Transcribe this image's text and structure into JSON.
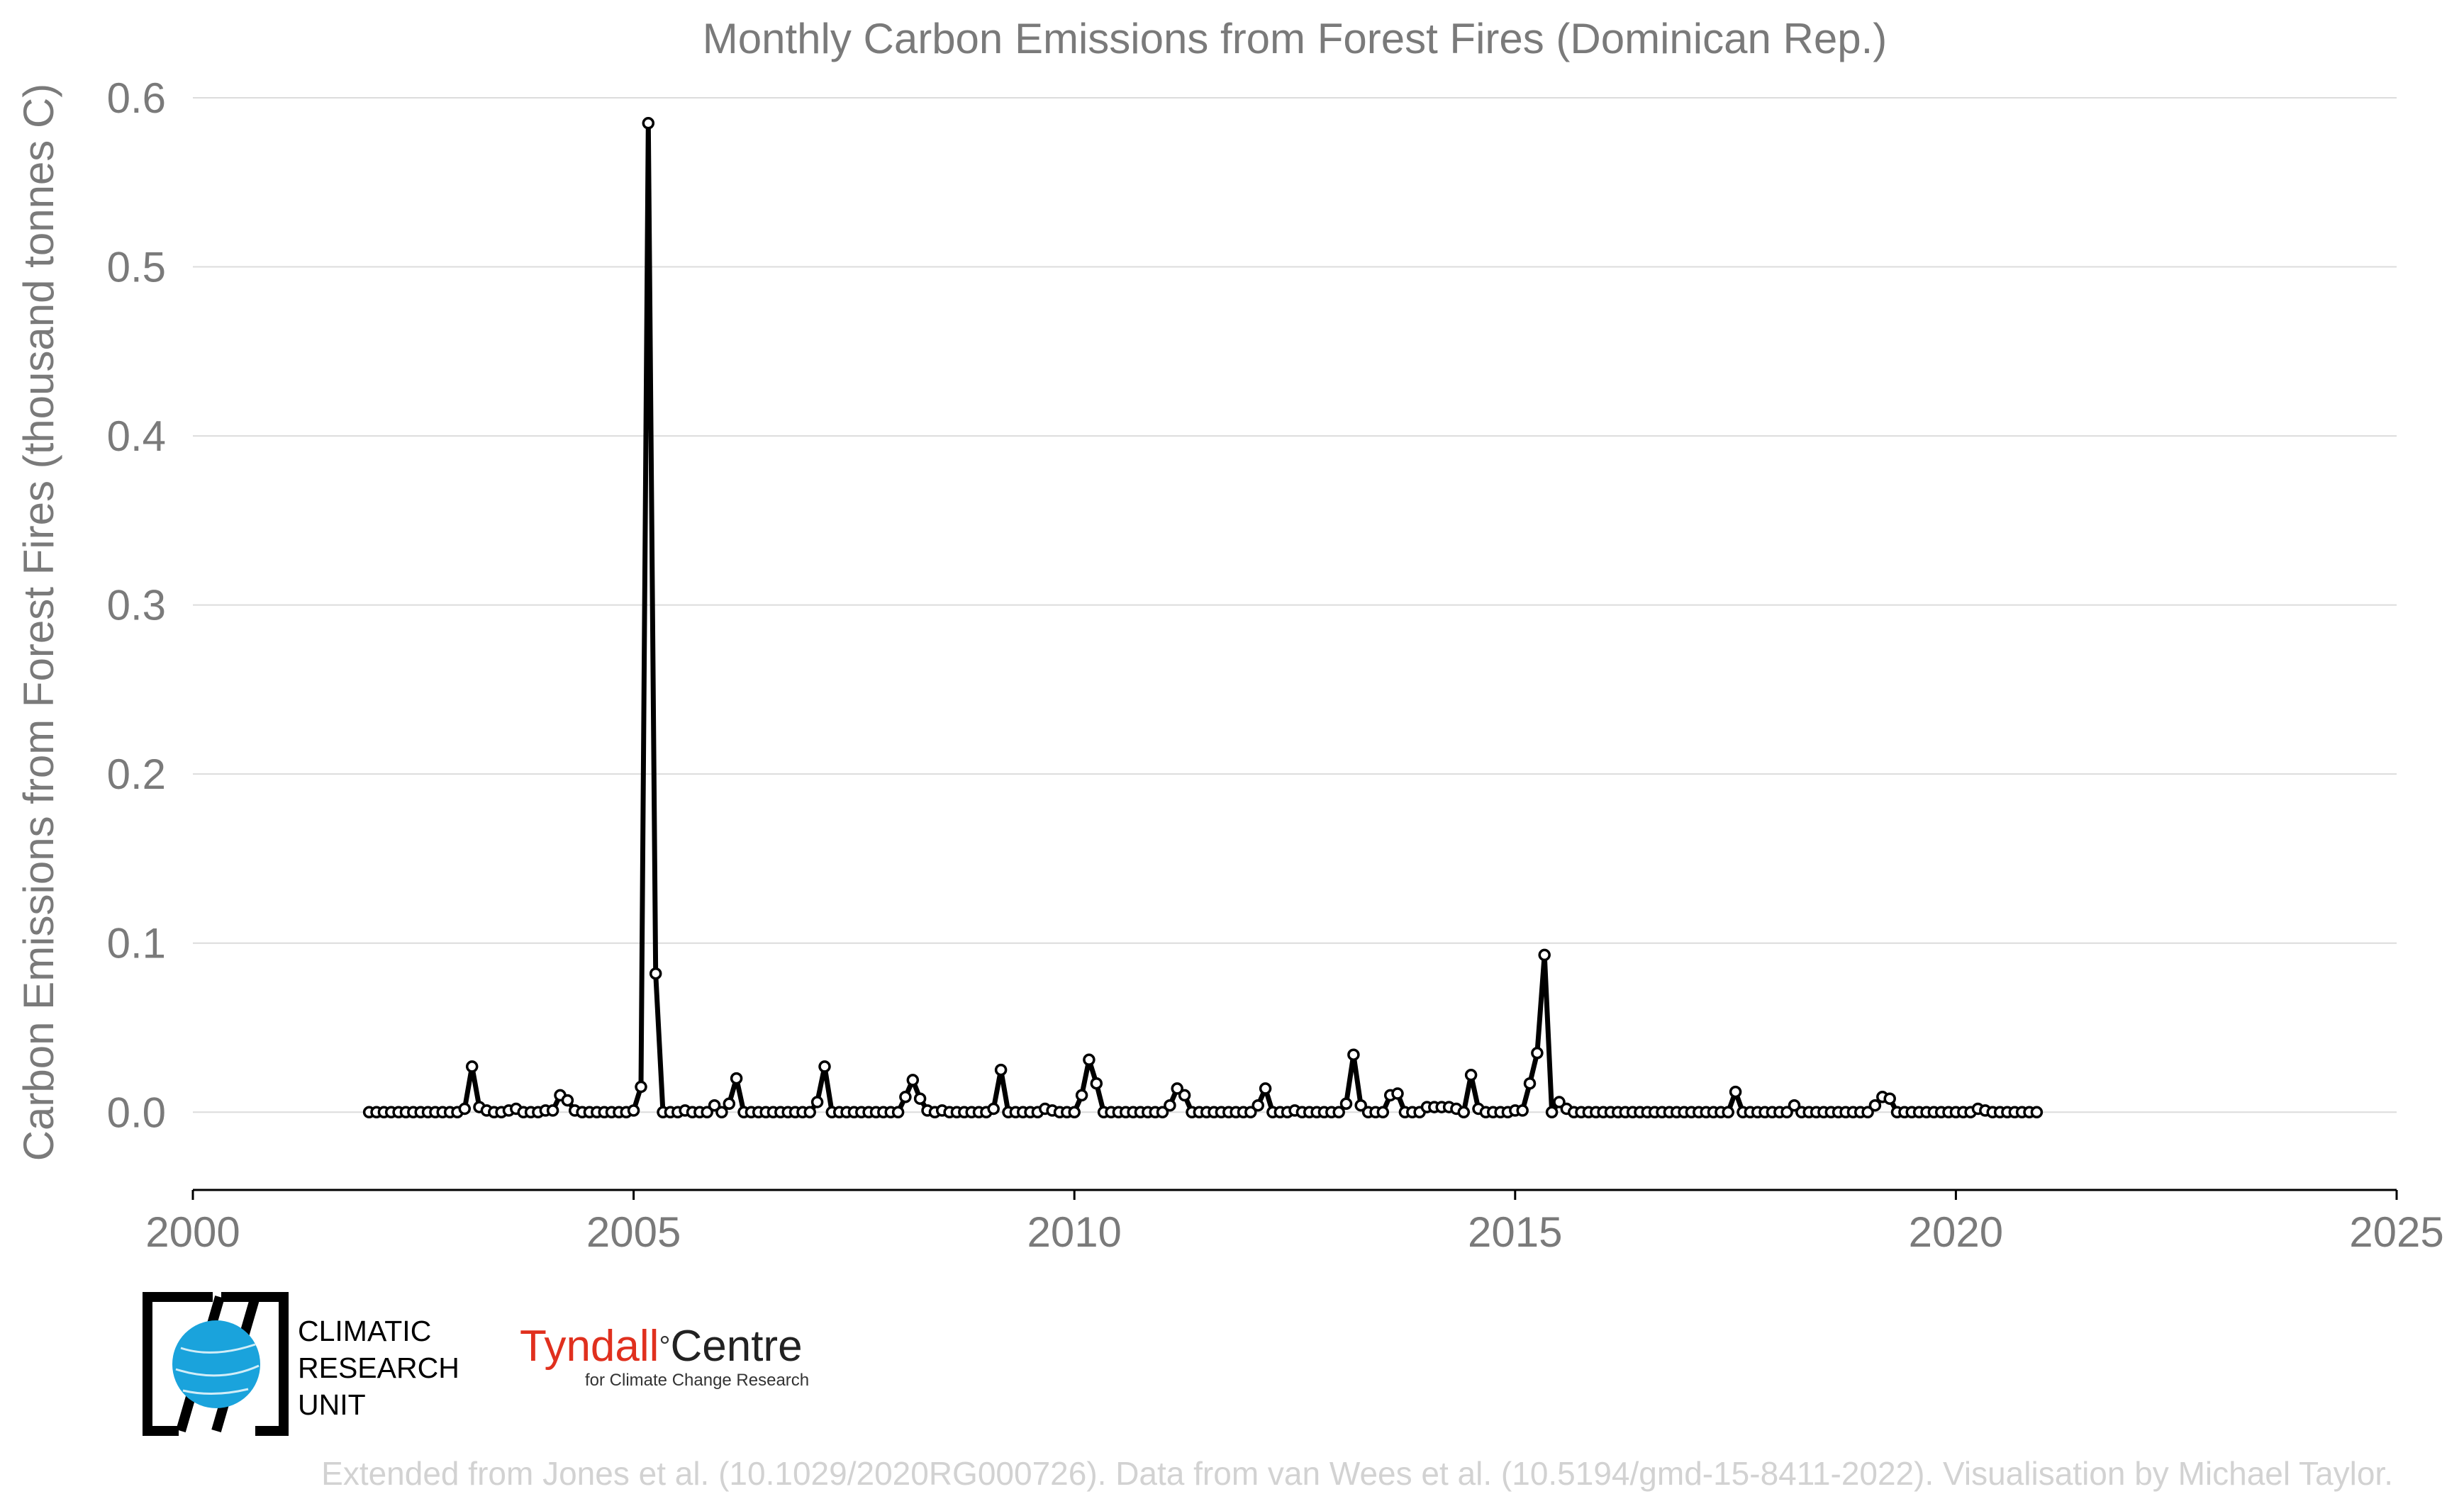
{
  "chart_data": {
    "type": "line",
    "title": "Monthly Carbon Emissions from Forest Fires (Dominican Rep.)",
    "ylabel": "Carbon Emissions from Forest Fires (thousand tonnes C)",
    "xlabel": "",
    "xlim": [
      2000,
      2025
    ],
    "ylim": [
      -0.046,
      0.6
    ],
    "xticks": [
      "2000",
      "2005",
      "2010",
      "2015",
      "2020",
      "2025"
    ],
    "yticks": [
      "0.0",
      "0.1",
      "0.2",
      "0.3",
      "0.4",
      "0.5",
      "0.6"
    ],
    "grid": "horizontal",
    "legend": "none",
    "line_color": "#000000",
    "x_start": "2002-01",
    "x_step": "1 month",
    "series": [
      {
        "values": [
          0,
          0,
          0,
          0,
          0,
          0,
          0,
          0,
          0,
          0,
          0,
          0,
          0,
          0.002,
          0.027,
          0.003,
          0.001,
          0,
          0,
          0.001,
          0.002,
          0,
          0,
          0,
          0.001,
          0.001,
          0.01,
          0.007,
          0.001,
          0,
          0,
          0,
          0,
          0,
          0,
          0,
          0.001,
          0.015,
          0.585,
          0.082,
          0,
          0,
          0,
          0.001,
          0,
          0,
          0,
          0.004,
          0,
          0.005,
          0.02,
          0,
          0,
          0,
          0,
          0,
          0,
          0,
          0,
          0,
          0,
          0.006,
          0.027,
          0,
          0,
          0,
          0,
          0,
          0,
          0,
          0,
          0,
          0,
          0.009,
          0.019,
          0.008,
          0.001,
          0,
          0.001,
          0,
          0,
          0,
          0,
          0,
          0,
          0.002,
          0.025,
          0,
          0,
          0,
          0,
          0,
          0.002,
          0.001,
          0,
          0,
          0,
          0.01,
          0.031,
          0.017,
          0,
          0,
          0,
          0,
          0,
          0,
          0,
          0,
          0,
          0.004,
          0.014,
          0.01,
          0,
          0,
          0,
          0,
          0,
          0,
          0,
          0,
          0,
          0.004,
          0.014,
          0,
          0,
          0,
          0.001,
          0,
          0,
          0,
          0,
          0,
          0,
          0.005,
          0.034,
          0.004,
          0,
          0,
          0,
          0.01,
          0.011,
          0,
          0,
          0,
          0.003,
          0.003,
          0.003,
          0.003,
          0.002,
          0,
          0.022,
          0.002,
          0,
          0,
          0,
          0,
          0.001,
          0.001,
          0.017,
          0.035,
          0.093,
          0,
          0.006,
          0.002,
          0,
          0,
          0,
          0,
          0,
          0,
          0,
          0,
          0,
          0,
          0,
          0,
          0,
          0,
          0,
          0,
          0,
          0,
          0,
          0,
          0,
          0,
          0.012,
          0,
          0,
          0,
          0,
          0,
          0,
          0,
          0.004,
          0,
          0,
          0,
          0,
          0,
          0,
          0,
          0,
          0,
          0,
          0.004,
          0.009,
          0.008,
          0,
          0,
          0,
          0,
          0,
          0,
          0,
          0,
          0,
          0,
          0,
          0.002,
          0.001,
          0,
          0,
          0,
          0,
          0,
          0,
          0
        ]
      }
    ]
  },
  "logos": {
    "cru_lines": [
      "CLIMATIC",
      "RESEARCH",
      "UNIT"
    ],
    "tyndall_part1": "Tyndall",
    "tyndall_degree": "°",
    "tyndall_part2": "Centre",
    "tyndall_sub": "for Climate Change Research"
  },
  "credit": "Extended from Jones et al. (10.1029/2020RG000726). Data from van Wees et al. (10.5194/gmd-15-8411-2022). Visualisation by Michael Taylor."
}
